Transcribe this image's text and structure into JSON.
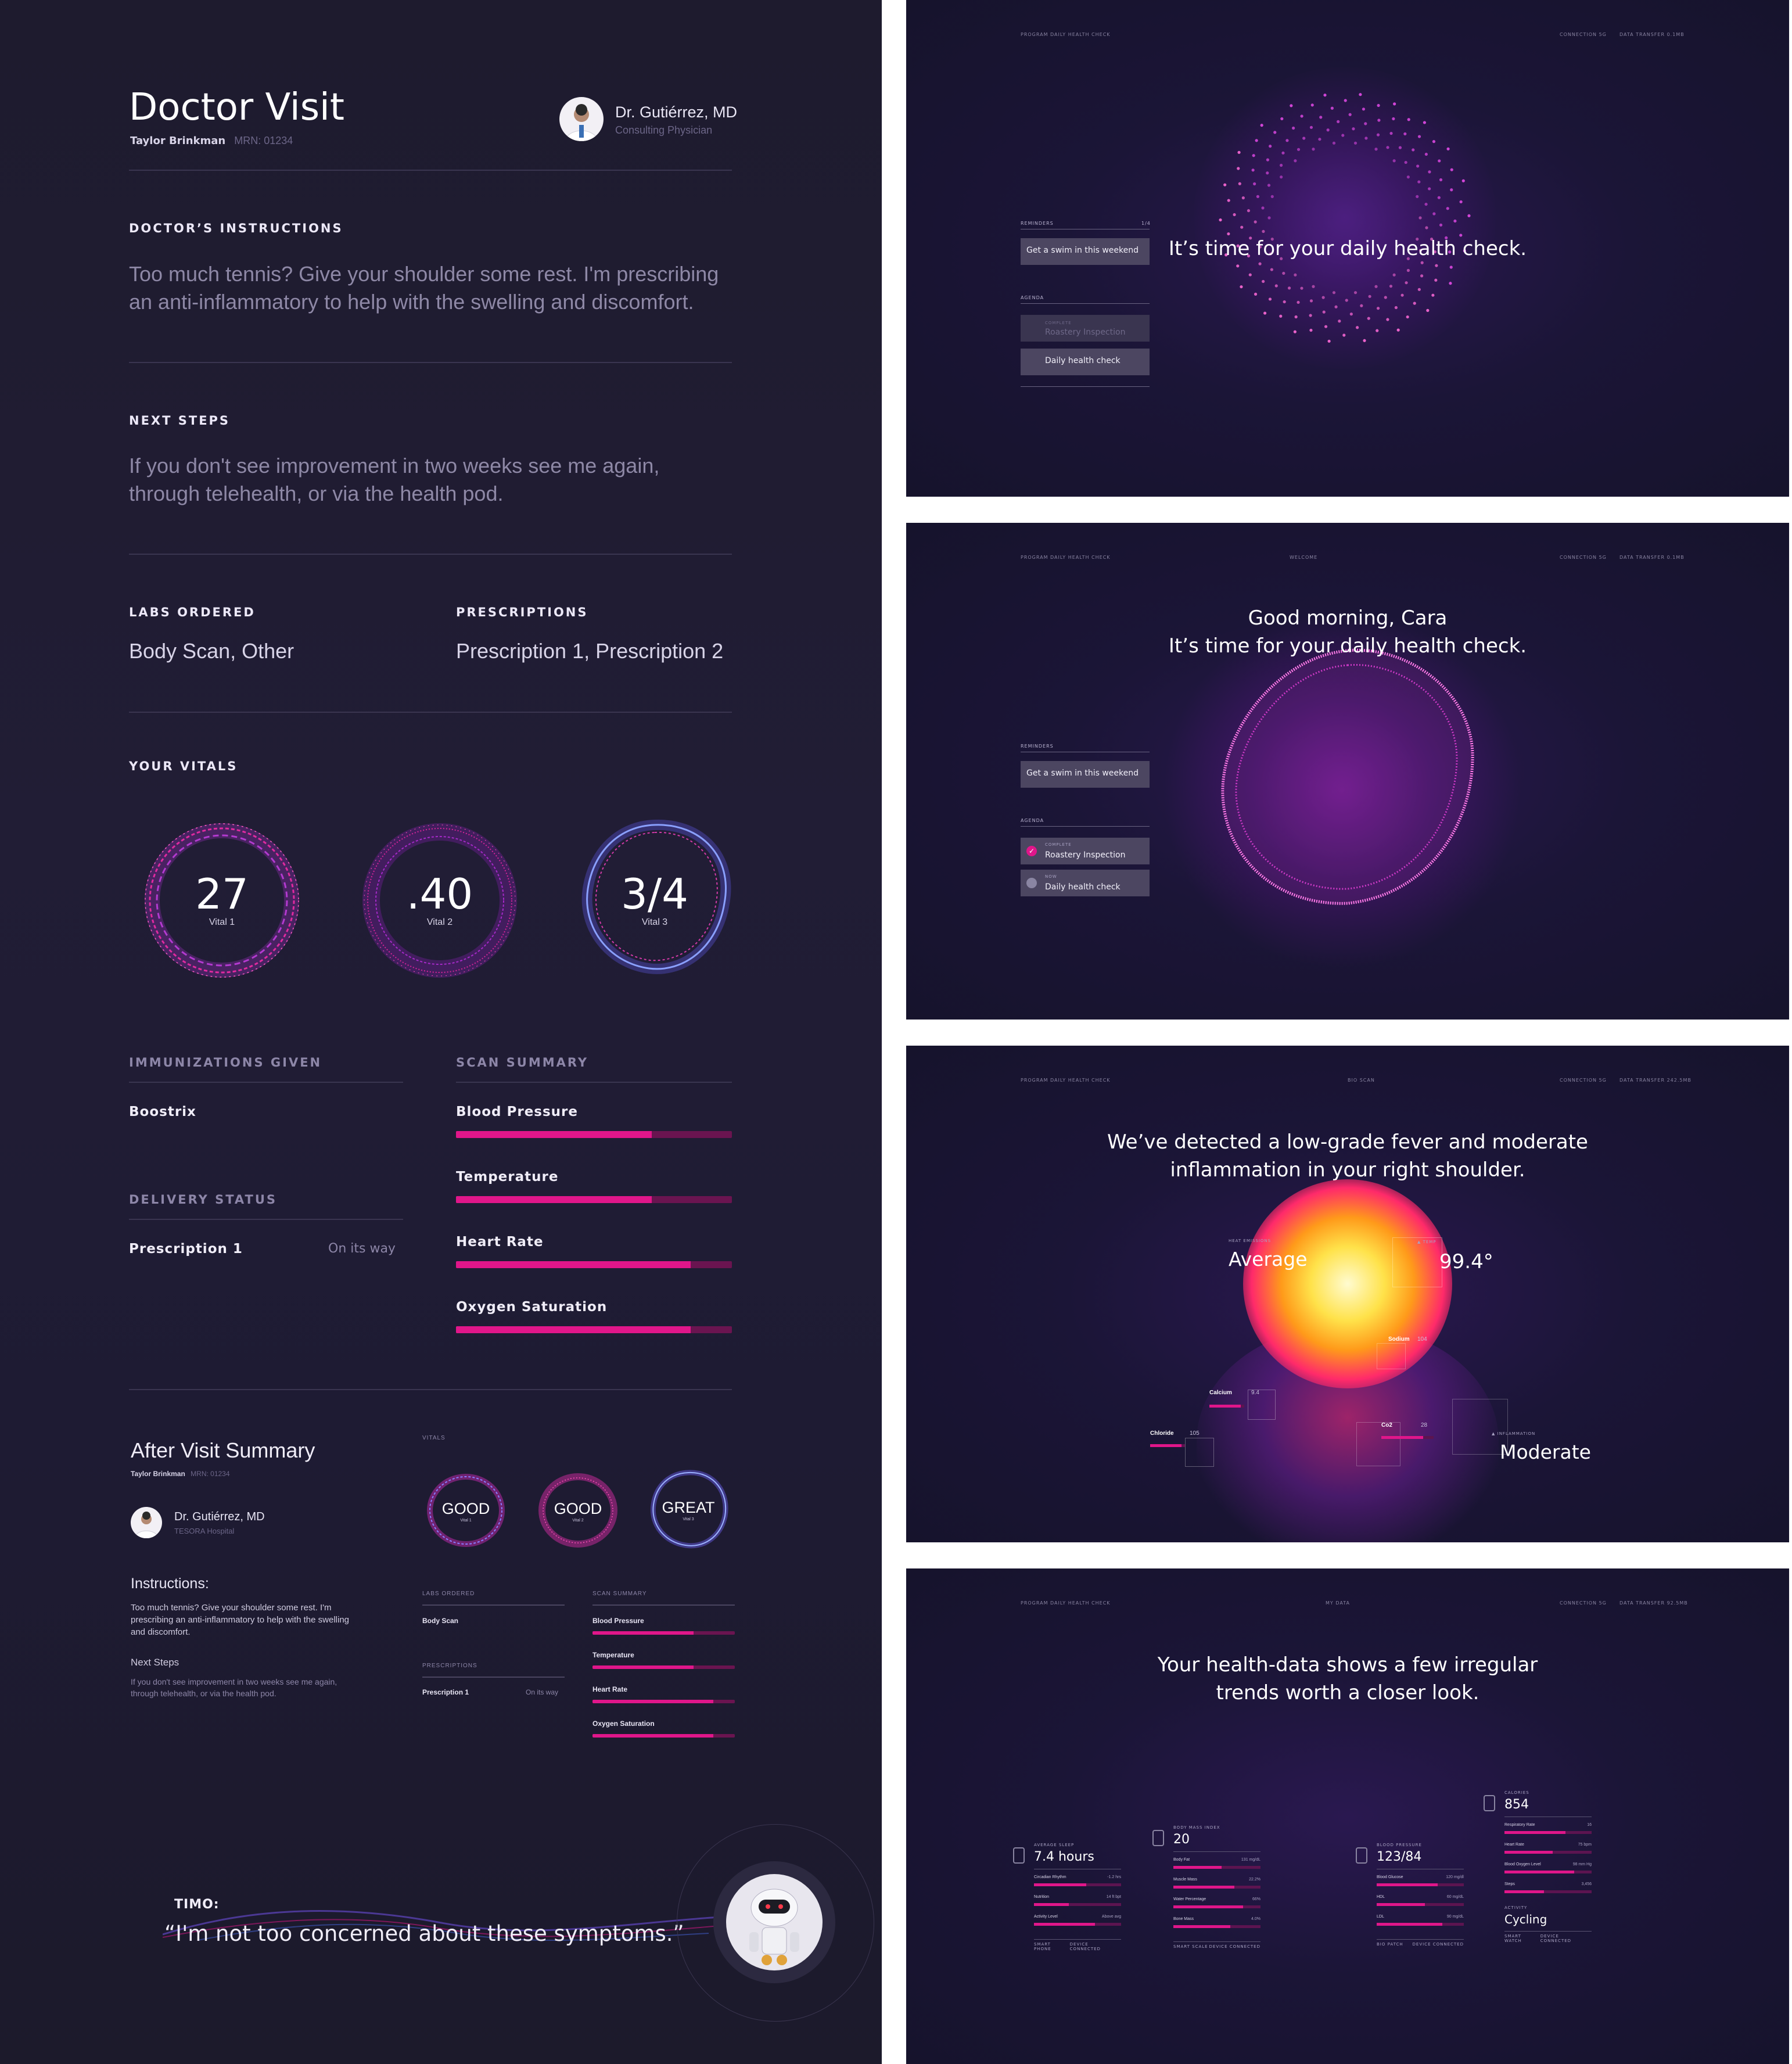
{
  "report": {
    "title": "Doctor Visit",
    "patient_name": "Taylor Brinkman",
    "mrn": "MRN: 01234",
    "doctor_name": "Dr. Gutiérrez, MD",
    "doctor_role": "Consulting Physician",
    "instructions_label": "DOCTOR’S INSTRUCTIONS",
    "instructions_text": "Too much tennis? Give your shoulder some rest. I'm prescribing an anti-inflammatory to help with the swelling and discomfort.",
    "next_steps_label": "NEXT STEPS",
    "next_steps_text": "If you don't see improvement in two weeks see me again, through telehealth, or via the health pod.",
    "labs_label": "LABS ORDERED",
    "labs_value": "Body Scan, Other",
    "prescriptions_label": "PRESCRIPTIONS",
    "prescriptions_value": "Prescription 1, Prescription 2",
    "vitals_label": "YOUR VITALS",
    "vitals": [
      {
        "value": "27",
        "label": "Vital 1",
        "color": "#e02aa0"
      },
      {
        "value": ".40",
        "label": "Vital 2",
        "color": "#d52498"
      },
      {
        "value": "3/4",
        "label": "Vital 3",
        "color": "#8a6ff0"
      }
    ],
    "immunizations_label": "IMMUNIZATIONS GIVEN",
    "immunization_value": "Boostrix",
    "delivery_label": "DELIVERY STATUS",
    "delivery_item": "Prescription 1",
    "delivery_status": "On its way",
    "scan_label": "SCAN SUMMARY",
    "scan_items": [
      {
        "label": "Blood Pressure",
        "fill": 0.71
      },
      {
        "label": "Temperature",
        "fill": 0.71
      },
      {
        "label": "Heart Rate",
        "fill": 0.85
      },
      {
        "label": "Oxygen Saturation",
        "fill": 0.85
      }
    ]
  },
  "summary": {
    "title": "After Visit Summary",
    "patient_name": "Taylor Brinkman",
    "mrn": "MRN: 01234",
    "doctor_name": "Dr. Gutiérrez, MD",
    "doctor_org": "TESORA Hospital",
    "vitals_label": "VITALS",
    "vitals": [
      {
        "value": "GOOD",
        "label": "Vital 1"
      },
      {
        "value": "GOOD",
        "label": "Vital 2"
      },
      {
        "value": "GREAT",
        "label": "Vital 3"
      }
    ],
    "instructions_label": "Instructions:",
    "instructions_text": "Too much tennis? Give your shoulder some rest. I'm prescribing an anti-inflammatory to help with the swelling and discomfort.",
    "next_steps_label": "Next Steps",
    "next_steps_text": "If you don't see improvement in two weeks see me again, through telehealth, or via the health pod.",
    "labs_label": "LABS ORDERED",
    "labs_value": "Body Scan",
    "prescriptions_label": "PRESCRIPTIONS",
    "prescription_item": "Prescription 1",
    "prescription_status": "On its way",
    "scan_label": "SCAN SUMMARY",
    "scan_items": [
      {
        "label": "Blood Pressure",
        "fill": 0.71
      },
      {
        "label": "Temperature",
        "fill": 0.71
      },
      {
        "label": "Heart Rate",
        "fill": 0.85
      },
      {
        "label": "Oxygen Saturation",
        "fill": 0.85
      }
    ]
  },
  "assistant": {
    "name": "TIMO:",
    "quote": "“I'm not too concerned about these symptoms.”"
  },
  "screen1": {
    "header_left": "PROGRAM DAILY HEALTH CHECK",
    "header_conn": "CONNECTION 5G",
    "header_transfer": "DATA TRANSFER 0.1MB",
    "headline": "It’s time for your daily health check.",
    "reminders_label": "REMINDERS",
    "reminders_count": "1/4",
    "reminder_item": "Get a swim in this weekend",
    "agenda_label": "AGENDA",
    "agenda_complete_tag": "COMPLETE",
    "agenda_complete_item": "Roastery Inspection",
    "agenda_item": "Daily health check"
  },
  "screen2": {
    "header_left": "PROGRAM DAILY HEALTH CHECK",
    "header_mid": "WELCOME",
    "header_conn": "CONNECTION 5G",
    "header_transfer": "DATA TRANSFER 0.1MB",
    "headline_1": "Good morning, Cara",
    "headline_2": "It’s time for your daily health check.",
    "reminders_label": "REMINDERS",
    "reminder_item": "Get a swim in this weekend",
    "agenda_label": "AGENDA",
    "agenda_complete_tag": "COMPLETE",
    "agenda_complete_item": "Roastery Inspection",
    "agenda_now_tag": "NOW",
    "agenda_now_item": "Daily health check"
  },
  "screen3": {
    "header_left": "PROGRAM DAILY HEALTH CHECK",
    "header_mid": "BIO SCAN",
    "header_conn": "CONNECTION 5G",
    "header_transfer": "DATA TRANSFER 242.5MB",
    "headline_1": "We’ve detected a low-grade fever and moderate",
    "headline_2": "inflammation in your right shoulder.",
    "heat_label": "HEAT EMISSIONS",
    "heat_value": "Average",
    "temp_label": "TEMP",
    "temp_value": "99.4°",
    "inflammation_label": "INFLAMMATION",
    "inflammation_value": "Moderate",
    "sodium_label": "Sodium",
    "sodium_value": "104",
    "calcium_label": "Calcium",
    "calcium_value": "9.4",
    "chloride_label": "Chloride",
    "chloride_value": "105",
    "co2_label": "Co2",
    "co2_value": "28"
  },
  "screen4": {
    "header_left": "PROGRAM DAILY HEALTH CHECK",
    "header_mid": "MY DATA",
    "header_conn": "CONNECTION 5G",
    "header_transfer": "DATA TRANSFER 92.5MB",
    "headline_1": "Your health-data shows a few irregular",
    "headline_2": "trends worth a closer look.",
    "cards": [
      {
        "label": "AVERAGE SLEEP",
        "value": "7.4 hours",
        "rows": [
          {
            "label": "Circadian Rhythm",
            "value": "-1.2 hrs",
            "fill": 0.6
          },
          {
            "label": "Nutrition",
            "value": "14 ft bpt",
            "fill": 0.4
          },
          {
            "label": "Activity Level",
            "value": "Above avg",
            "fill": 0.7
          }
        ],
        "footer_left": "SMART PHONE",
        "footer_right": "DEVICE CONNECTED"
      },
      {
        "label": "BODY MASS INDEX",
        "value": "20",
        "rows": [
          {
            "label": "Body Fat",
            "value": "131 mg/dL",
            "fill": 0.55
          },
          {
            "label": "Muscle Mass",
            "value": "22.2%",
            "fill": 0.7
          },
          {
            "label": "Water Percentage",
            "value": "66%",
            "fill": 0.8
          },
          {
            "label": "Bone Mass",
            "value": "4.0%",
            "fill": 0.65
          }
        ],
        "footer_left": "SMART SCALE",
        "footer_right": "DEVICE CONNECTED"
      },
      {
        "label": "BLOOD PRESSURE",
        "value": "123/84",
        "rows": [
          {
            "label": "Blood Glucose",
            "value": "120 mg/dl",
            "fill": 0.7
          },
          {
            "label": "HDL",
            "value": "60 mg/dL",
            "fill": 0.55
          },
          {
            "label": "LDL",
            "value": "90 mg/dL",
            "fill": 0.75
          }
        ],
        "footer_left": "BIO PATCH",
        "footer_right": "DEVICE CONNECTED"
      },
      {
        "label": "CALORIES",
        "value": "854",
        "rows": [
          {
            "label": "Respiratory Rate",
            "value": "16",
            "fill": 0.7
          },
          {
            "label": "Heart Rate",
            "value": "75 bpm",
            "fill": 0.55
          },
          {
            "label": "Blood Oxygen Level",
            "value": "98 mm Hg",
            "fill": 0.8
          },
          {
            "label": "Steps",
            "value": "3,456",
            "fill": 0.45
          }
        ],
        "activity_label": "ACTIVITY",
        "activity_value": "Cycling",
        "footer_left": "SMART WATCH",
        "footer_right": "DEVICE CONNECTED"
      }
    ]
  }
}
